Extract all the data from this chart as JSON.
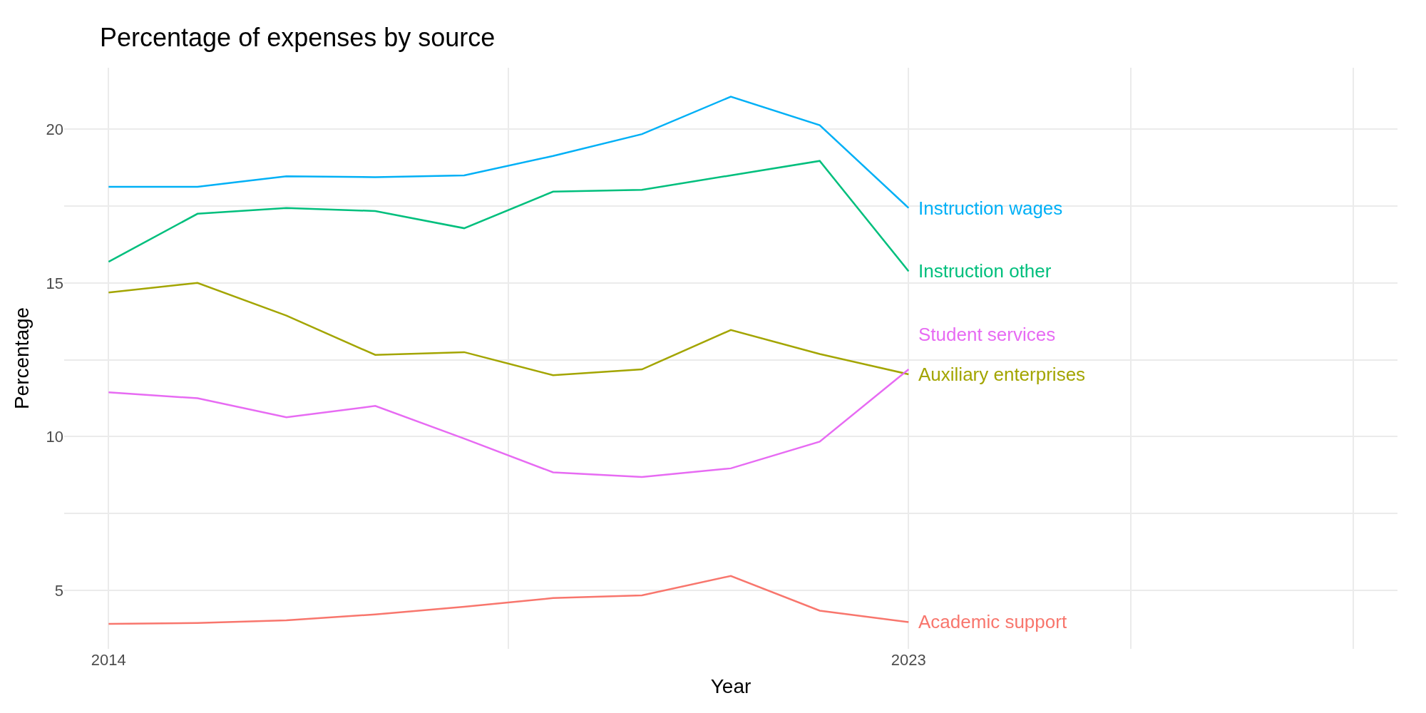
{
  "chart_data": {
    "type": "line",
    "title": "Percentage of expenses by source",
    "xlabel": "Year",
    "ylabel": "Percentage",
    "x": [
      2014,
      2015,
      2016,
      2017,
      2018,
      2019,
      2020,
      2021,
      2022,
      2023
    ],
    "series": [
      {
        "name": "Academic support",
        "color": "#f8766d",
        "values": [
          3.91,
          3.94,
          4.03,
          4.22,
          4.47,
          4.75,
          4.84,
          5.47,
          4.34,
          3.97
        ]
      },
      {
        "name": "Auxiliary enterprises",
        "color": "#a3a500",
        "values": [
          14.69,
          15.0,
          13.94,
          12.66,
          12.75,
          12.0,
          12.19,
          13.47,
          12.69,
          12.03
        ]
      },
      {
        "name": "Instruction other",
        "color": "#00bf7d",
        "values": [
          15.69,
          17.25,
          17.44,
          17.34,
          16.78,
          17.97,
          18.03,
          18.5,
          18.97,
          15.38
        ]
      },
      {
        "name": "Instruction wages",
        "color": "#00b0f6",
        "values": [
          18.13,
          18.13,
          18.47,
          18.44,
          18.5,
          19.13,
          19.84,
          21.06,
          20.13,
          17.44
        ]
      },
      {
        "name": "Student services",
        "color": "#e76bf3",
        "values": [
          11.44,
          11.25,
          10.63,
          11.0,
          9.94,
          8.84,
          8.69,
          8.97,
          9.84,
          12.19
        ]
      }
    ],
    "xlim": [
      2013.5,
      2028.5
    ],
    "xticks": [
      2014,
      {
        "value": 2018.5,
        "label": null
      },
      2023,
      {
        "value": 2025.5,
        "label": null
      },
      {
        "value": 2028,
        "label": null
      }
    ],
    "ylim": [
      3.1,
      22
    ],
    "yticks": [
      5,
      {
        "value": 7.5,
        "label": null
      },
      10,
      {
        "value": 12.5,
        "label": null
      },
      15,
      {
        "value": 17.5,
        "label": null
      },
      20
    ],
    "grid": true,
    "legend": false,
    "marker": "none",
    "line_style": "solid"
  }
}
